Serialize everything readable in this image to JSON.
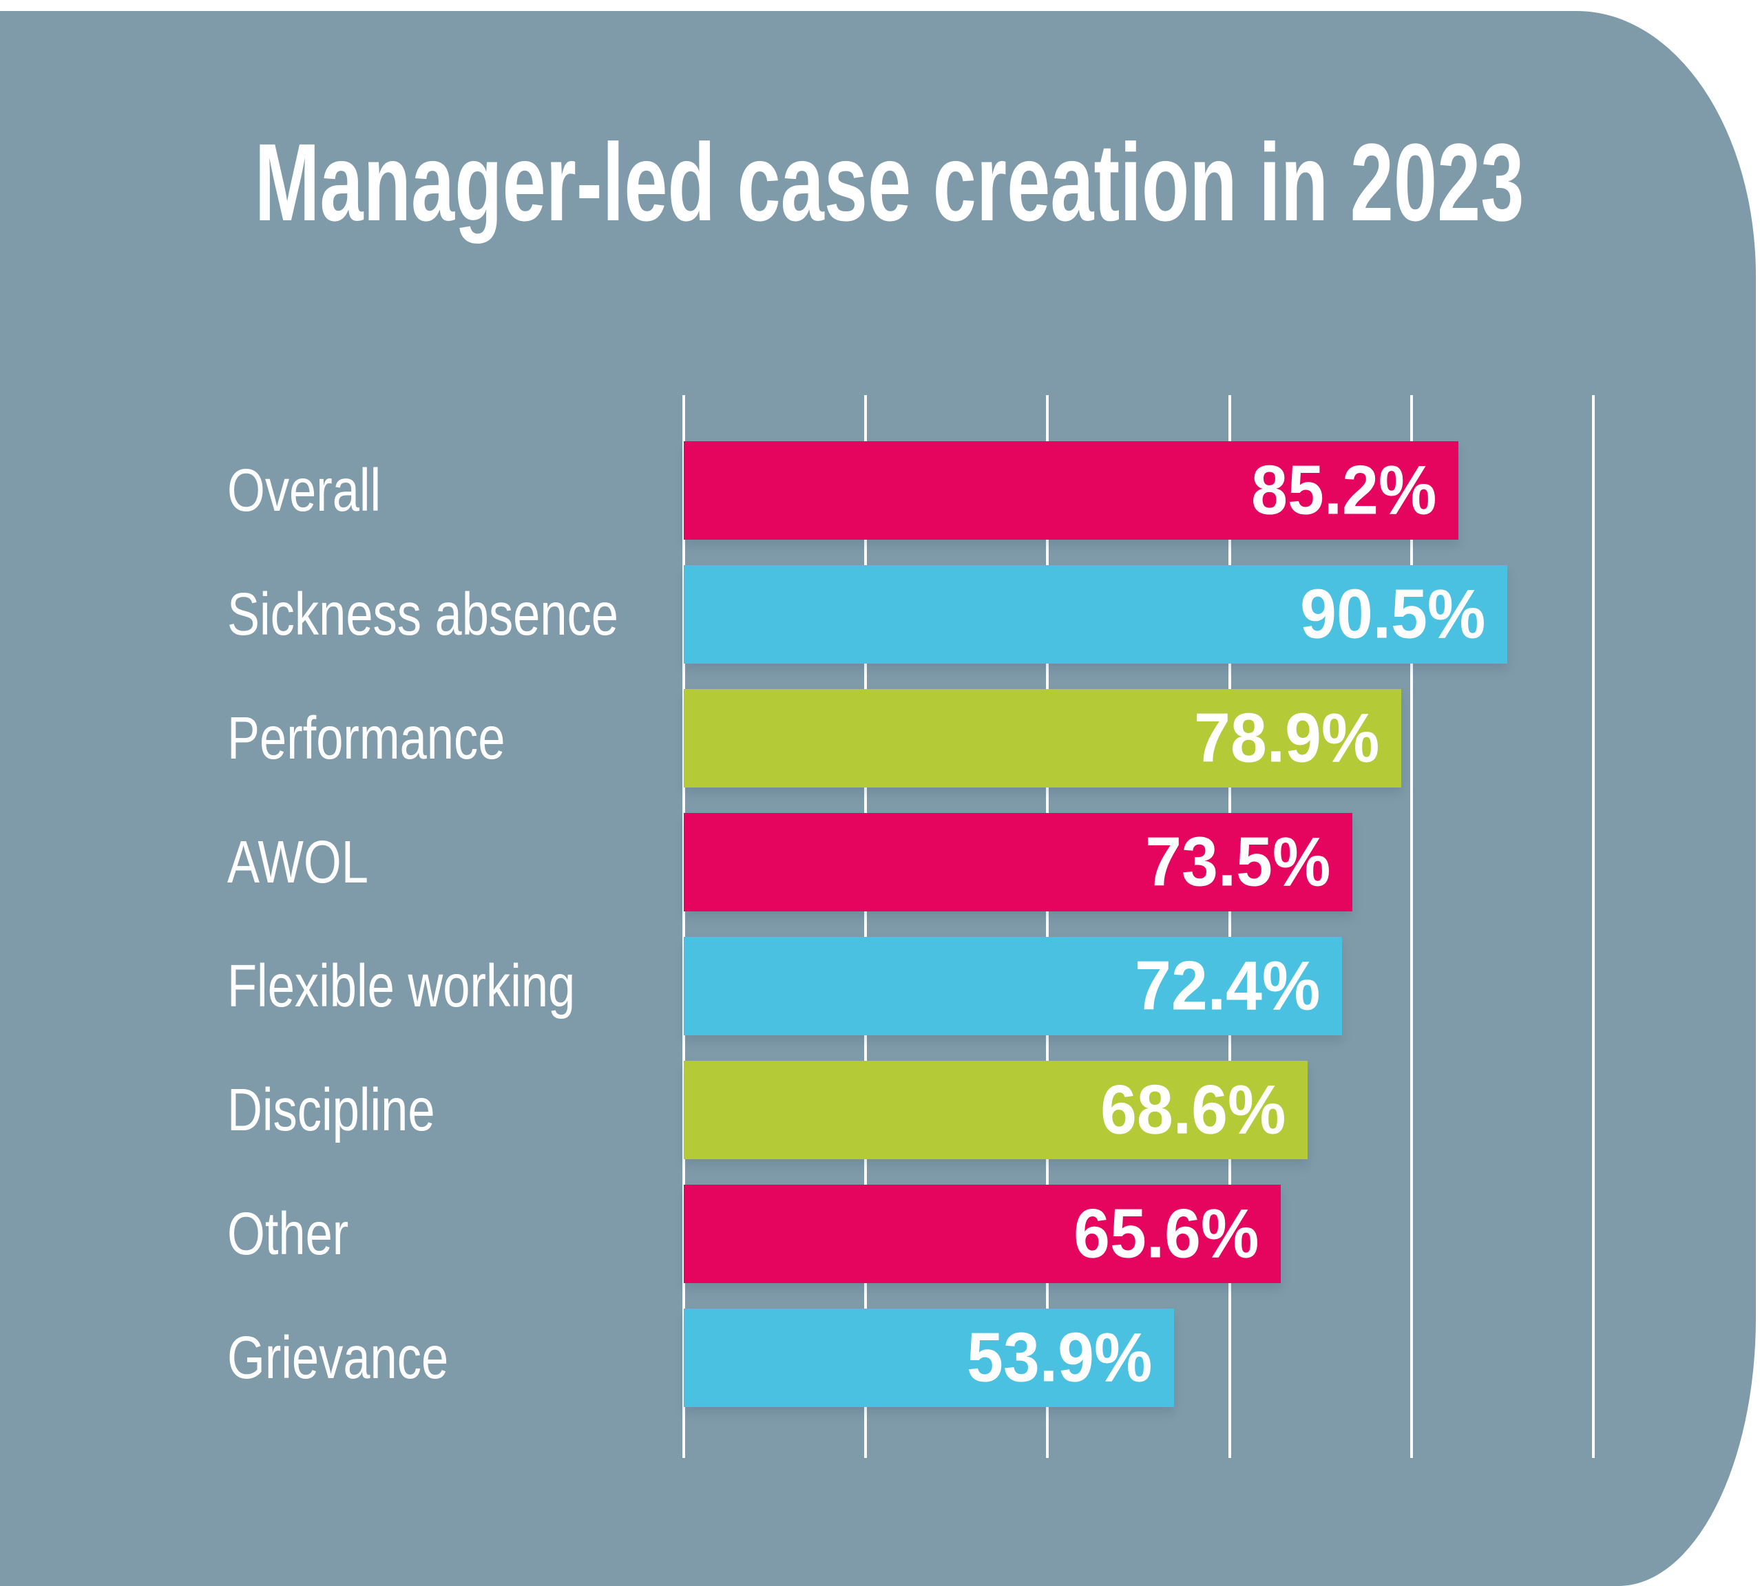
{
  "page": {
    "background": "#FFFFFF"
  },
  "panel": {
    "background": "#7F9BAA"
  },
  "chart_data": {
    "type": "bar",
    "orientation": "horizontal",
    "title": "Manager-led case creation in 2023",
    "categories": [
      "Overall",
      "Sickness absence",
      "Performance",
      "AWOL",
      "Flexible working",
      "Discipline",
      "Other",
      "Grievance"
    ],
    "values": [
      85.2,
      90.5,
      78.9,
      73.5,
      72.4,
      68.6,
      65.6,
      53.9
    ],
    "value_labels": [
      "85.2%",
      "90.5%",
      "78.9%",
      "73.5%",
      "72.4%",
      "68.6%",
      "65.6%",
      "53.9%"
    ],
    "bar_color_keys": [
      "pink",
      "cyan",
      "green",
      "pink",
      "cyan",
      "green",
      "pink",
      "cyan"
    ],
    "palette": {
      "pink": "#E5055F",
      "cyan": "#4BC1E1",
      "green": "#B4CB37"
    },
    "text_color": "#FFFFFF",
    "xlabel": "",
    "ylabel": "",
    "xlim": [
      0,
      100
    ],
    "gridline_positions_pct": [
      0,
      20,
      40,
      60,
      80,
      100
    ],
    "gridline_color": "#FFFFFF",
    "grid": "vertical-lines",
    "legend": "none",
    "value_label_position": "inside-right"
  }
}
